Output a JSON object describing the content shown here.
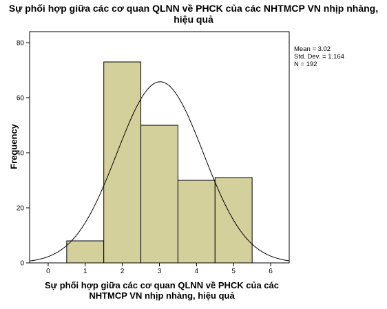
{
  "chart_data": {
    "type": "bar",
    "title": "Sự phối hợp giữa các cơ quan QLNN về PHCK của các NHTMCP VN nhịp nhàng, hiệu quả",
    "xlabel": "Sự phối hợp giữa các cơ quan QLNN về PHCK của các NHTMCP VN nhịp nhàng, hiệu quả",
    "ylabel": "Frequency",
    "categories": [
      "1",
      "2",
      "3",
      "4",
      "5"
    ],
    "x": [
      1,
      2,
      3,
      4,
      5
    ],
    "values": [
      8,
      73,
      50,
      30,
      31
    ],
    "xlim": [
      -0.5,
      6.5
    ],
    "ylim": [
      0,
      84
    ],
    "xticks": [
      "0",
      "1",
      "2",
      "3",
      "4",
      "5",
      "6"
    ],
    "yticks": [
      "0",
      "20",
      "40",
      "60",
      "80"
    ],
    "bar_color": "#d4d09c",
    "normal_curve": true,
    "stats": {
      "mean_label": "Mean = 3.02",
      "sd_label": "Std. Dev. = 1.164",
      "n_label": "N = 192",
      "mean": 3.02,
      "sd": 1.164,
      "n": 192
    },
    "grid": false,
    "legend": "none"
  }
}
